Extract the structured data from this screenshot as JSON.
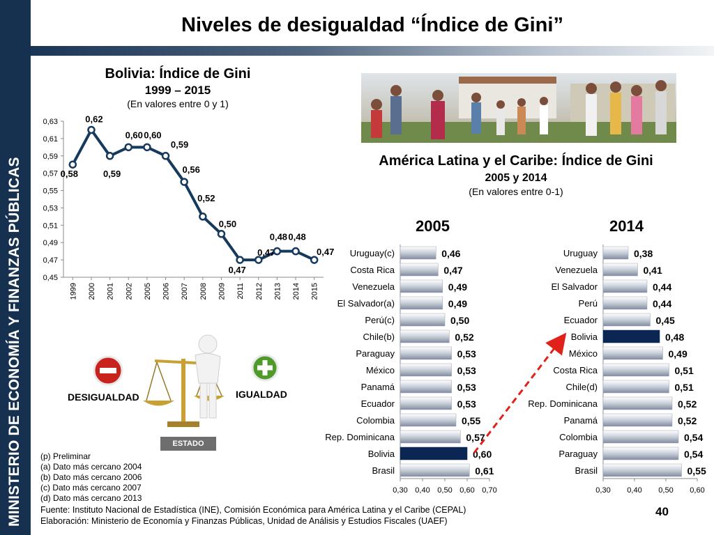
{
  "sidebar": {
    "text": "MINISTERIO DE ECONOMÍA Y FINANZAS PÚBLICAS"
  },
  "page_title": "Niveles de desigualdad “Índice de Gini”",
  "left_chart": {
    "title": "Bolivia: Índice de Gini",
    "subtitle": "1999 – 2015",
    "note": "(En valores entre 0 y 1)"
  },
  "right_chart": {
    "title": "América Latina y el Caribe: Índice de Gini",
    "subtitle": "2005 y 2014",
    "note": "(En valores entre 0-1)"
  },
  "year_headers": {
    "a": "2005",
    "b": "2014"
  },
  "balance": {
    "left_label": "DESIGUALDAD",
    "right_label": "IGUALDAD",
    "base_label": "ESTADO"
  },
  "notes": [
    "(p) Preliminar",
    "(a) Dato más cercano 2004",
    "(b) Dato más cercano 2006",
    "(c) Dato más cercano 2007",
    "(d) Dato más cercano 2013"
  ],
  "source": [
    "Fuente: Instituto Nacional de Estadística (INE), Comisión Económica para América Latina y el Caribe (CEPAL)",
    "Elaboración: Ministerio de Economía y Finanzas Públicas, Unidad de Análisis y Estudios Fiscales (UAEF)"
  ],
  "page_number": "40",
  "colors": {
    "line": "#16395e",
    "bar": "#c9cfd9",
    "highlight": "#0b2653",
    "arrow": "#e0221b",
    "sidebar": "#16314f"
  },
  "chart_data": [
    {
      "type": "line",
      "title": "Bolivia: Índice de Gini",
      "categories": [
        "1999",
        "2000",
        "2001",
        "2002",
        "2005",
        "2006",
        "2007",
        "2008",
        "2009",
        "2011",
        "2012",
        "2013",
        "2014",
        "2015"
      ],
      "values": [
        0.58,
        0.62,
        0.59,
        0.6,
        0.6,
        0.59,
        0.56,
        0.52,
        0.5,
        0.47,
        0.47,
        0.48,
        0.48,
        0.47
      ],
      "labels": [
        "0,58",
        "0,62",
        "0,59",
        "0,60",
        "0,60",
        "0,59",
        "0,56",
        "0,52",
        "0,50",
        "0,47",
        "0,47",
        "0,48",
        "0,48",
        "0,47"
      ],
      "yticks": [
        "0,45",
        "0,47",
        "0,49",
        "0,51",
        "0,53",
        "0,55",
        "0,57",
        "0,59",
        "0,61",
        "0,63"
      ],
      "ylim": [
        0.45,
        0.63
      ],
      "grid": false
    },
    {
      "type": "bar",
      "orientation": "horizontal",
      "title": "2005",
      "categories": [
        "Uruguay(c)",
        "Costa Rica",
        "Venezuela",
        "El Salvador(a)",
        "Perú(c)",
        "Chile(b)",
        "Paraguay",
        "México",
        "Panamá",
        "Ecuador",
        "Colombia",
        "Rep. Dominicana",
        "Bolivia",
        "Brasil"
      ],
      "values": [
        0.46,
        0.47,
        0.49,
        0.49,
        0.5,
        0.52,
        0.53,
        0.53,
        0.53,
        0.53,
        0.55,
        0.57,
        0.6,
        0.61
      ],
      "labels": [
        "0,46",
        "0,47",
        "0,49",
        "0,49",
        "0,50",
        "0,52",
        "0,53",
        "0,53",
        "0,53",
        "0,53",
        "0,55",
        "0,57",
        "0,60",
        "0,61"
      ],
      "highlight": "Bolivia",
      "xticks": [
        "0,30",
        "0,40",
        "0,50",
        "0,60",
        "0,70"
      ],
      "xlim": [
        0.3,
        0.7
      ]
    },
    {
      "type": "bar",
      "orientation": "horizontal",
      "title": "2014",
      "categories": [
        "Uruguay",
        "Venezuela",
        "El Salvador",
        "Perú",
        "Ecuador",
        "Bolivia",
        "México",
        "Costa Rica",
        "Chile(d)",
        "Rep. Dominicana",
        "Panamá",
        "Colombia",
        "Paraguay",
        "Brasil"
      ],
      "values": [
        0.38,
        0.41,
        0.44,
        0.44,
        0.45,
        0.48,
        0.49,
        0.51,
        0.51,
        0.52,
        0.52,
        0.54,
        0.54,
        0.55
      ],
      "labels": [
        "0,38",
        "0,41",
        "0,44",
        "0,44",
        "0,45",
        "0,48",
        "0,49",
        "0,51",
        "0,51",
        "0,52",
        "0,52",
        "0,54",
        "0,54",
        "0,55"
      ],
      "highlight": "Bolivia",
      "xticks": [
        "0,30",
        "0,40",
        "0,50",
        "0,60"
      ],
      "xlim": [
        0.3,
        0.6
      ]
    }
  ]
}
